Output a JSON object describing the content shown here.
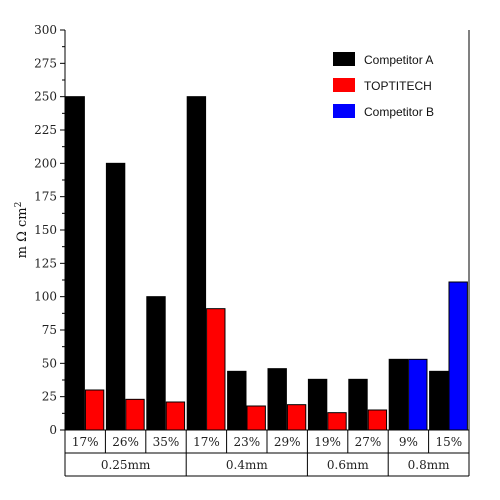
{
  "chart_data": {
    "type": "bar",
    "ylabel": "m Ω cm",
    "ylabel_superscript": "2",
    "ylim": [
      0,
      300
    ],
    "yticks": [
      0,
      25,
      50,
      75,
      100,
      125,
      150,
      175,
      200,
      225,
      250,
      275,
      300
    ],
    "legend_position": "top-right",
    "categories": [
      "17%",
      "26%",
      "35%",
      "17%",
      "23%",
      "29%",
      "19%",
      "27%",
      "9%",
      "15%"
    ],
    "groups": [
      {
        "label": "0.25mm",
        "span": 3
      },
      {
        "label": "0.4mm",
        "span": 3
      },
      {
        "label": "0.6mm",
        "span": 2
      },
      {
        "label": "0.8mm",
        "span": 2
      }
    ],
    "series": [
      {
        "name": "Competitor A",
        "color": "#000000",
        "values": [
          250,
          200,
          100,
          250,
          44,
          46,
          38,
          38,
          53,
          44
        ]
      },
      {
        "name": "TOPTITECH",
        "color": "#ff0000",
        "values": [
          30,
          23,
          21,
          91,
          18,
          19,
          13,
          15,
          null,
          null
        ]
      },
      {
        "name": "Competitor B",
        "color": "#0000ff",
        "values": [
          null,
          null,
          null,
          null,
          null,
          null,
          null,
          null,
          53,
          111
        ]
      }
    ]
  }
}
